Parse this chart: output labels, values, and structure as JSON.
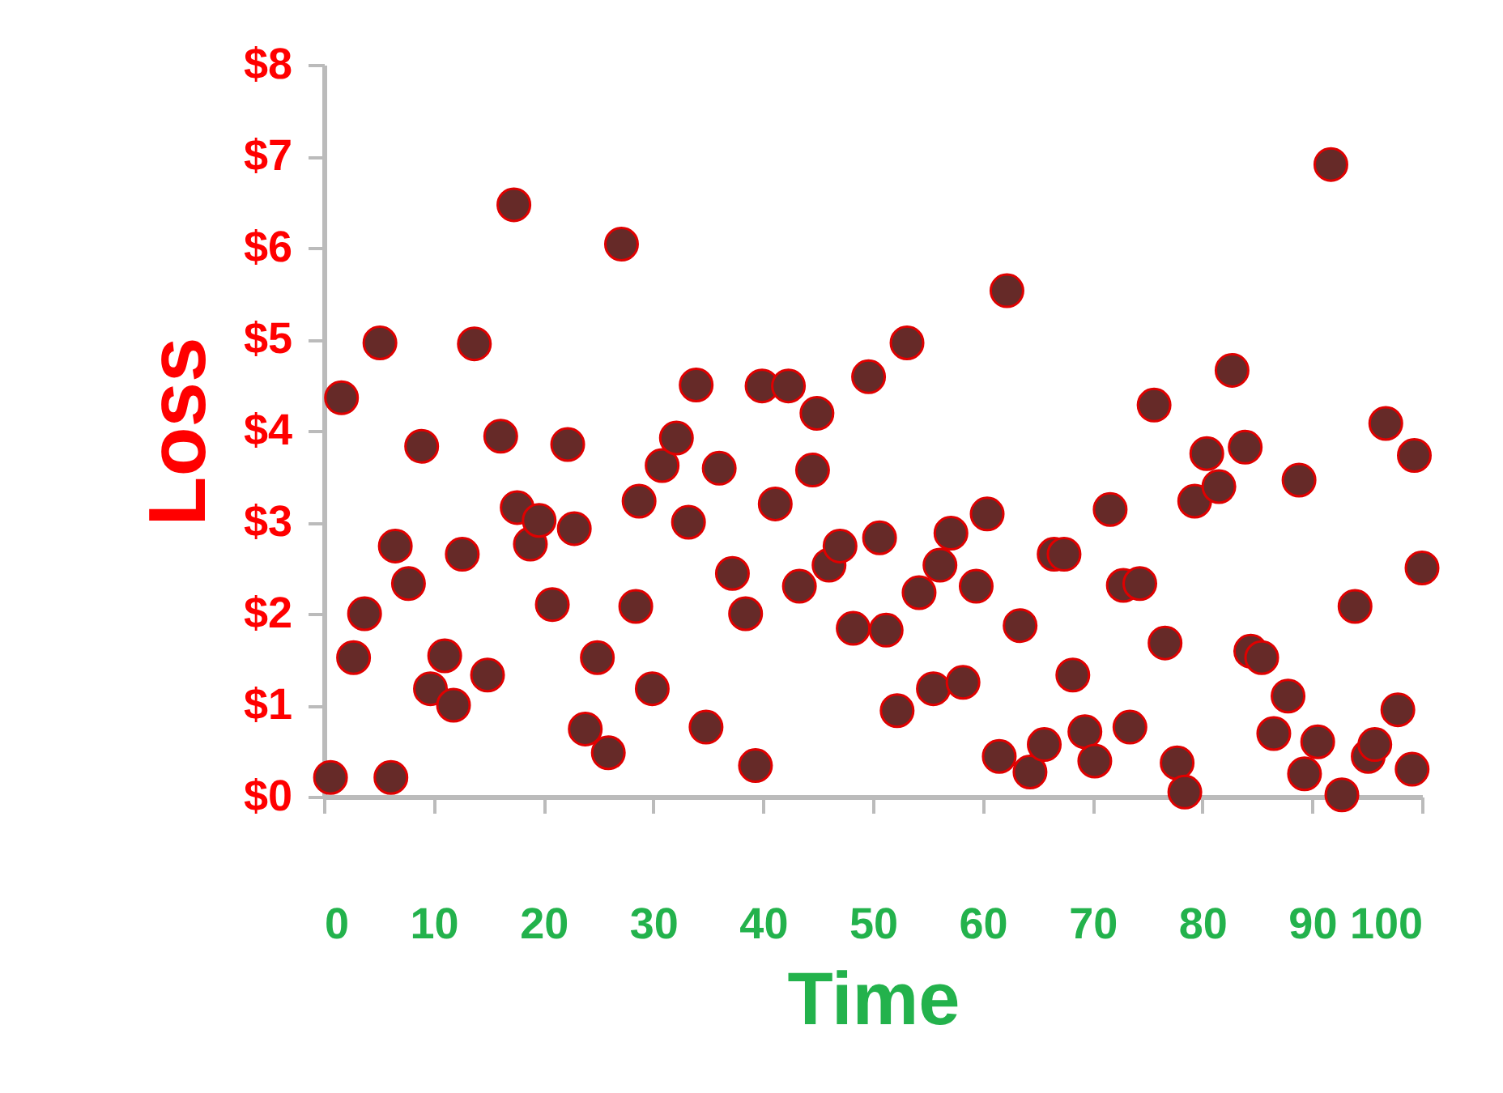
{
  "chart_data": {
    "type": "scatter",
    "xlabel": "Time",
    "ylabel": "Loss",
    "xlim": [
      0,
      100
    ],
    "ylim": [
      0,
      8
    ],
    "xticks": [
      0,
      10,
      20,
      30,
      40,
      50,
      60,
      70,
      80,
      90,
      100
    ],
    "yticks": [
      {
        "value": 0,
        "label": "$0"
      },
      {
        "value": 1,
        "label": "$1"
      },
      {
        "value": 2,
        "label": "$2"
      },
      {
        "value": 3,
        "label": "$3"
      },
      {
        "value": 4,
        "label": "$4"
      },
      {
        "value": 5,
        "label": "$5"
      },
      {
        "value": 6,
        "label": "$6"
      },
      {
        "value": 7,
        "label": "$7"
      },
      {
        "value": 8,
        "label": "$8"
      }
    ],
    "grid": false,
    "marker": "circle",
    "series": [
      {
        "color": "#662a28",
        "x": [
          0.6,
          1.6,
          2.7,
          3.7,
          5.1,
          6.1,
          6.5,
          7.7,
          8.9,
          9.7,
          11.0,
          11.8,
          12.6,
          13.7,
          14.9,
          16.1,
          17.3,
          17.6,
          18.8,
          19.6,
          20.8,
          22.2,
          22.8,
          23.8,
          24.9,
          25.9,
          27.1,
          28.4,
          28.7,
          29.9,
          30.8,
          32.1,
          33.2,
          33.9,
          34.8,
          36.0,
          37.2,
          38.4,
          39.3,
          39.9,
          41.1,
          42.3,
          43.3,
          44.9,
          44.5,
          46.0,
          47.0,
          48.2,
          49.6,
          50.6,
          51.2,
          52.2,
          53.1,
          54.2,
          55.5,
          56.1,
          57.1,
          58.2,
          59.4,
          60.4,
          61.5,
          62.2,
          63.4,
          64.3,
          65.6,
          66.5,
          67.4,
          68.2,
          69.3,
          70.2,
          71.6,
          72.8,
          73.4,
          74.3,
          75.6,
          76.6,
          77.7,
          78.4,
          79.3,
          80.4,
          81.5,
          82.7,
          83.9,
          84.4,
          85.4,
          86.5,
          87.8,
          88.8,
          89.3,
          90.5,
          91.7,
          92.7,
          93.9,
          95.1,
          95.7,
          96.7,
          97.8,
          99.1,
          99.3,
          100
        ],
        "values": [
          0.21,
          4.36,
          1.52,
          2.0,
          4.96,
          0.21,
          2.74,
          2.33,
          3.83,
          1.18,
          1.54,
          1.0,
          2.65,
          4.95,
          1.33,
          3.94,
          6.47,
          3.16,
          2.76,
          3.02,
          2.1,
          3.85,
          2.93,
          0.74,
          1.52,
          0.48,
          6.04,
          2.08,
          3.23,
          1.18,
          3.62,
          3.92,
          3.0,
          4.5,
          0.76,
          3.59,
          2.44,
          2.0,
          0.34,
          4.49,
          3.2,
          4.49,
          2.3,
          4.19,
          3.57,
          2.53,
          2.74,
          1.84,
          4.59,
          2.83,
          1.82,
          0.94,
          4.96,
          2.23,
          1.18,
          2.53,
          2.88,
          1.25,
          2.3,
          3.09,
          0.44,
          5.53,
          1.87,
          0.27,
          0.57,
          2.65,
          2.65,
          1.33,
          0.71,
          0.39,
          3.14,
          2.31,
          0.76,
          2.33,
          4.28,
          1.68,
          0.37,
          0.05,
          3.23,
          3.75,
          3.39,
          4.66,
          3.82,
          1.59,
          1.52,
          0.69,
          1.1,
          3.46,
          0.25,
          0.6,
          6.91,
          0.02,
          2.08,
          0.44,
          0.57,
          4.08,
          0.95,
          0.3,
          3.73,
          2.5
        ]
      }
    ]
  }
}
